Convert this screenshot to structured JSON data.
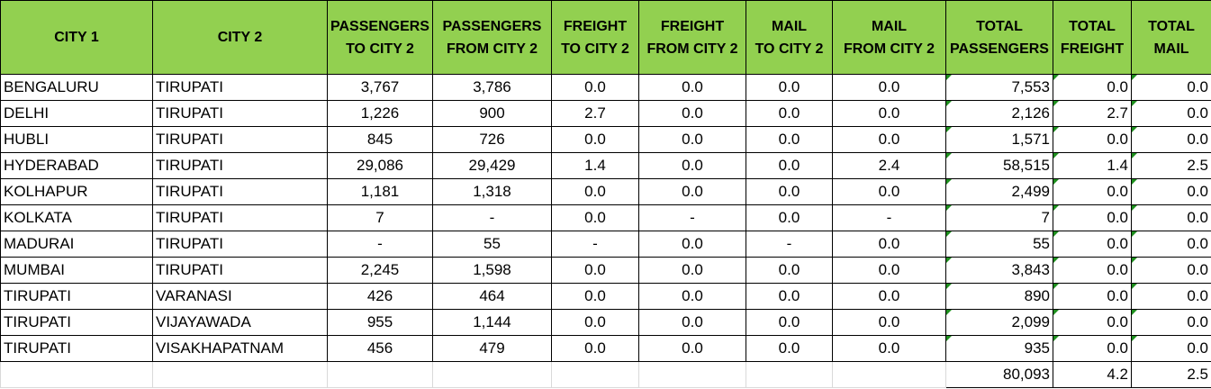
{
  "headers": [
    [
      "CITY 1"
    ],
    [
      "CITY 2"
    ],
    [
      "PASSENGERS",
      "TO CITY 2"
    ],
    [
      "PASSENGERS",
      "FROM CITY 2"
    ],
    [
      "FREIGHT",
      "TO CITY 2"
    ],
    [
      "FREIGHT",
      "FROM CITY 2"
    ],
    [
      "MAIL",
      "TO CITY 2"
    ],
    [
      "MAIL",
      "FROM CITY 2"
    ],
    [
      "TOTAL",
      "PASSENGERS"
    ],
    [
      "TOTAL",
      "FREIGHT"
    ],
    [
      "TOTAL",
      "MAIL"
    ]
  ],
  "rows": [
    [
      "BENGALURU",
      "TIRUPATI",
      "3,767",
      "3,786",
      "0.0",
      "0.0",
      "0.0",
      "0.0",
      "7,553",
      "0.0",
      "0.0"
    ],
    [
      "DELHI",
      "TIRUPATI",
      "1,226",
      "900",
      "2.7",
      "0.0",
      "0.0",
      "0.0",
      "2,126",
      "2.7",
      "0.0"
    ],
    [
      "HUBLI",
      "TIRUPATI",
      "845",
      "726",
      "0.0",
      "0.0",
      "0.0",
      "0.0",
      "1,571",
      "0.0",
      "0.0"
    ],
    [
      "HYDERABAD",
      "TIRUPATI",
      "29,086",
      "29,429",
      "1.4",
      "0.0",
      "0.0",
      "2.4",
      "58,515",
      "1.4",
      "2.5"
    ],
    [
      "KOLHAPUR",
      "TIRUPATI",
      "1,181",
      "1,318",
      "0.0",
      "0.0",
      "0.0",
      "0.0",
      "2,499",
      "0.0",
      "0.0"
    ],
    [
      "KOLKATA",
      "TIRUPATI",
      "7",
      "-",
      "0.0",
      "-",
      "0.0",
      "-",
      "7",
      "0.0",
      "0.0"
    ],
    [
      "MADURAI",
      "TIRUPATI",
      "-",
      "55",
      "-",
      "0.0",
      "-",
      "0.0",
      "55",
      "0.0",
      "0.0"
    ],
    [
      "MUMBAI",
      "TIRUPATI",
      "2,245",
      "1,598",
      "0.0",
      "0.0",
      "0.0",
      "0.0",
      "3,843",
      "0.0",
      "0.0"
    ],
    [
      "TIRUPATI",
      "VARANASI",
      "426",
      "464",
      "0.0",
      "0.0",
      "0.0",
      "0.0",
      "890",
      "0.0",
      "0.0"
    ],
    [
      "TIRUPATI",
      "VIJAYAWADA",
      "955",
      "1,144",
      "0.0",
      "0.0",
      "0.0",
      "0.0",
      "2,099",
      "0.0",
      "0.0"
    ],
    [
      "TIRUPATI",
      "VISAKHAPATNAM",
      "456",
      "479",
      "0.0",
      "0.0",
      "0.0",
      "0.0",
      "935",
      "0.0",
      "0.0"
    ]
  ],
  "totals": {
    "total_passengers": "80,093",
    "total_freight": "4.2",
    "total_mail": "2.5"
  },
  "colors": {
    "header_fill": "#92d050",
    "error_triangle": "#1e8f1e"
  }
}
